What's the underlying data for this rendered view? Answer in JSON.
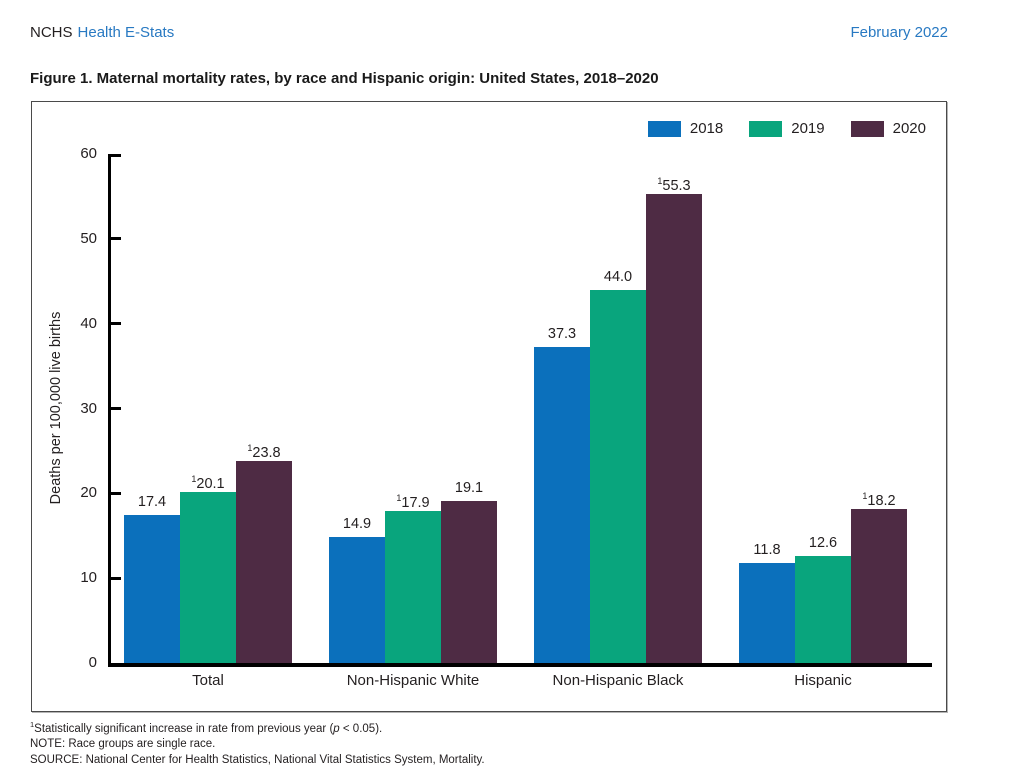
{
  "header": {
    "org": "NCHS",
    "publication": "Health E-Stats",
    "date": "February 2022"
  },
  "figure_title": "Figure 1. Maternal mortality rates, by race and Hispanic origin: United States, 2018–2020",
  "chart_data": {
    "type": "bar",
    "title": "Maternal mortality rates, by race and Hispanic origin: United States, 2018–2020",
    "ylabel": "Deaths per 100,000 live births",
    "xlabel": "",
    "ylim": [
      0,
      60
    ],
    "yticks": [
      0,
      10,
      20,
      30,
      40,
      50,
      60
    ],
    "grid": false,
    "legend_position": "top-right",
    "categories": [
      "Total",
      "Non-Hispanic White",
      "Non-Hispanic Black",
      "Hispanic"
    ],
    "series": [
      {
        "name": "2018",
        "color": "#0b70bc",
        "values": [
          17.4,
          14.9,
          37.3,
          11.8
        ],
        "significant_increase": [
          false,
          false,
          false,
          false
        ]
      },
      {
        "name": "2019",
        "color": "#09a57d",
        "values": [
          20.1,
          17.9,
          44.0,
          12.6
        ],
        "significant_increase": [
          true,
          true,
          false,
          false
        ]
      },
      {
        "name": "2020",
        "color": "#4e2b44",
        "values": [
          23.8,
          19.1,
          55.3,
          18.2
        ],
        "significant_increase": [
          true,
          false,
          true,
          true
        ]
      }
    ],
    "significance_marker": "1",
    "value_label_decimals": 1
  },
  "footnotes": {
    "sig_sup": "1",
    "sig_pre": "Statistically significant increase in rate from previous year (",
    "sig_var": "p",
    "sig_post": " < 0.05).",
    "note": "NOTE: Race groups are single race.",
    "source": "SOURCE: National Center for Health Statistics, National Vital Statistics System, Mortality."
  },
  "colors": {
    "accent_text_blue": "#2879c2",
    "text": "#231f20",
    "axis": "#000000"
  }
}
